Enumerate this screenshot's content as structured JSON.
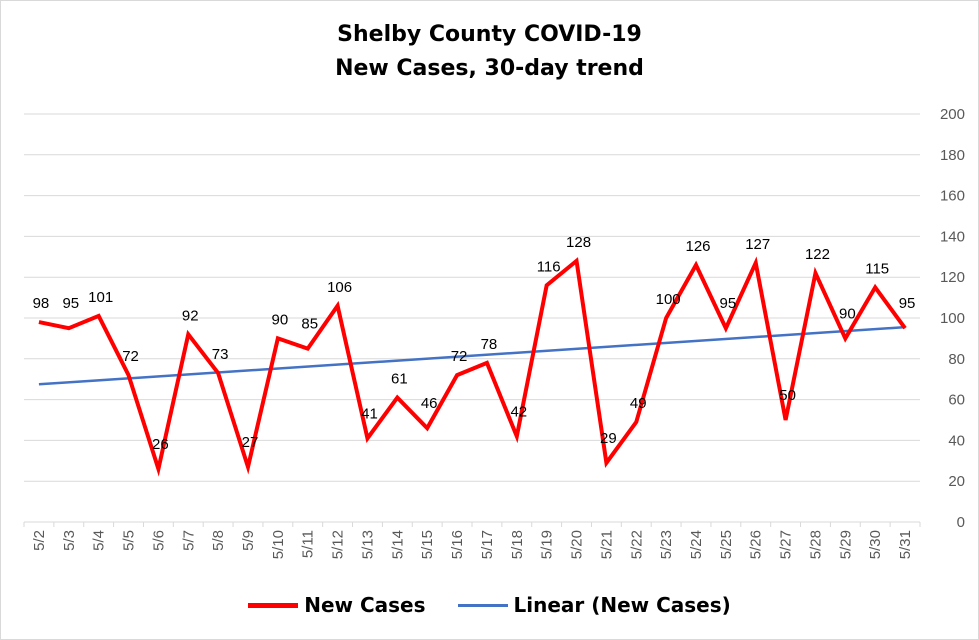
{
  "chart_data": {
    "type": "line",
    "title": "Shelby County COVID-19",
    "subtitle": "New Cases, 30-day trend",
    "categories": [
      "5/2",
      "5/3",
      "5/4",
      "5/5",
      "5/6",
      "5/7",
      "5/8",
      "5/9",
      "5/10",
      "5/11",
      "5/12",
      "5/13",
      "5/14",
      "5/15",
      "5/16",
      "5/17",
      "5/18",
      "5/19",
      "5/20",
      "5/21",
      "5/22",
      "5/23",
      "5/24",
      "5/25",
      "5/26",
      "5/27",
      "5/28",
      "5/29",
      "5/30",
      "5/31"
    ],
    "series": [
      {
        "name": "New Cases",
        "color": "#ff0000",
        "values": [
          98,
          95,
          101,
          72,
          26,
          92,
          73,
          27,
          90,
          85,
          106,
          41,
          61,
          46,
          72,
          78,
          42,
          116,
          128,
          29,
          49,
          100,
          126,
          95,
          127,
          50,
          122,
          90,
          115,
          95
        ]
      }
    ],
    "trendline": {
      "name": "Linear (New Cases)",
      "color": "#4472c4",
      "start": 67.5,
      "end": 95.5
    },
    "y_axis": {
      "min": 0,
      "max": 200,
      "step": 20,
      "position": "right",
      "ticks": [
        "0",
        "20",
        "40",
        "60",
        "80",
        "100",
        "120",
        "140",
        "160",
        "180",
        "200"
      ]
    },
    "grid": true,
    "legend_position": "bottom"
  }
}
